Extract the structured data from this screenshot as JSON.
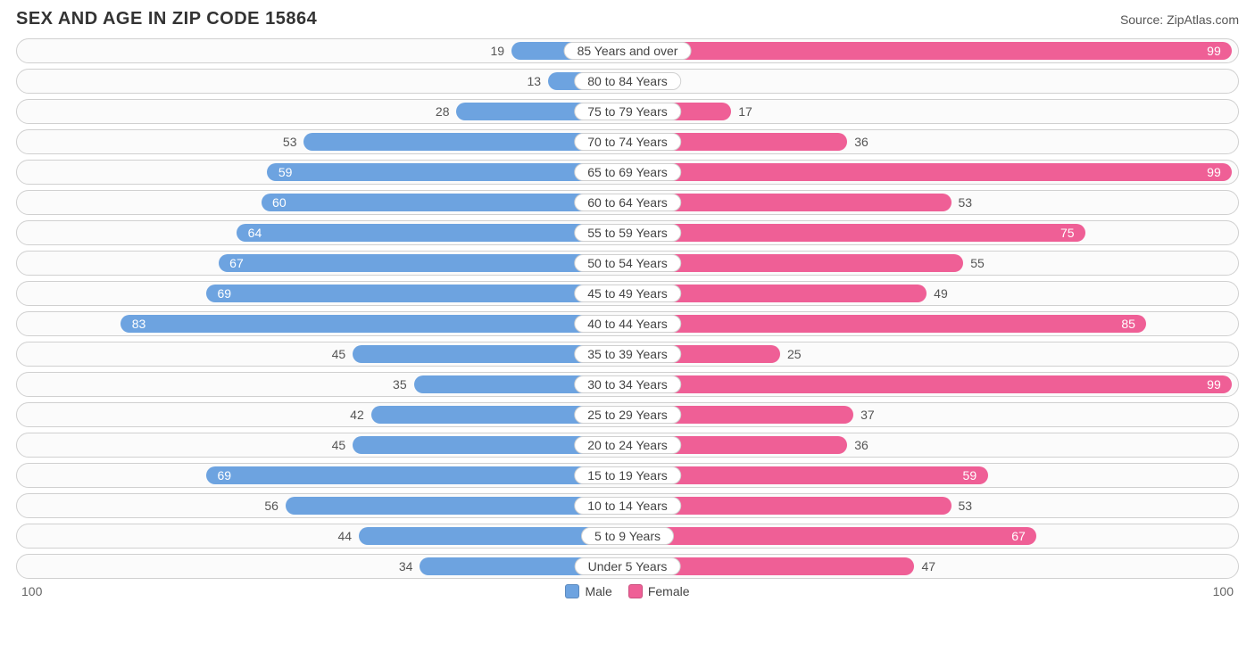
{
  "title": "SEX AND AGE IN ZIP CODE 15864",
  "source_label": "Source:",
  "source_value": "ZipAtlas.com",
  "chart": {
    "type": "population-pyramid",
    "axis_max": 100,
    "axis_left_label": "100",
    "axis_right_label": "100",
    "male_color": "#6da3e0",
    "female_color": "#ef5f96",
    "row_background": "#fbfbfb",
    "row_border_color": "#d0d0d0",
    "bar_radius": 12,
    "title_fontsize": 20,
    "label_fontsize": 14,
    "legend": {
      "male_label": "Male",
      "female_label": "Female"
    },
    "rows": [
      {
        "category": "85 Years and over",
        "male": 19,
        "female": 99
      },
      {
        "category": "80 to 84 Years",
        "male": 13,
        "female": 6
      },
      {
        "category": "75 to 79 Years",
        "male": 28,
        "female": 17
      },
      {
        "category": "70 to 74 Years",
        "male": 53,
        "female": 36
      },
      {
        "category": "65 to 69 Years",
        "male": 59,
        "female": 99
      },
      {
        "category": "60 to 64 Years",
        "male": 60,
        "female": 53
      },
      {
        "category": "55 to 59 Years",
        "male": 64,
        "female": 75
      },
      {
        "category": "50 to 54 Years",
        "male": 67,
        "female": 55
      },
      {
        "category": "45 to 49 Years",
        "male": 69,
        "female": 49
      },
      {
        "category": "40 to 44 Years",
        "male": 83,
        "female": 85
      },
      {
        "category": "35 to 39 Years",
        "male": 45,
        "female": 25
      },
      {
        "category": "30 to 34 Years",
        "male": 35,
        "female": 99
      },
      {
        "category": "25 to 29 Years",
        "male": 42,
        "female": 37
      },
      {
        "category": "20 to 24 Years",
        "male": 45,
        "female": 36
      },
      {
        "category": "15 to 19 Years",
        "male": 69,
        "female": 59
      },
      {
        "category": "10 to 14 Years",
        "male": 56,
        "female": 53
      },
      {
        "category": "5 to 9 Years",
        "male": 44,
        "female": 67
      },
      {
        "category": "Under 5 Years",
        "male": 34,
        "female": 47
      }
    ]
  }
}
